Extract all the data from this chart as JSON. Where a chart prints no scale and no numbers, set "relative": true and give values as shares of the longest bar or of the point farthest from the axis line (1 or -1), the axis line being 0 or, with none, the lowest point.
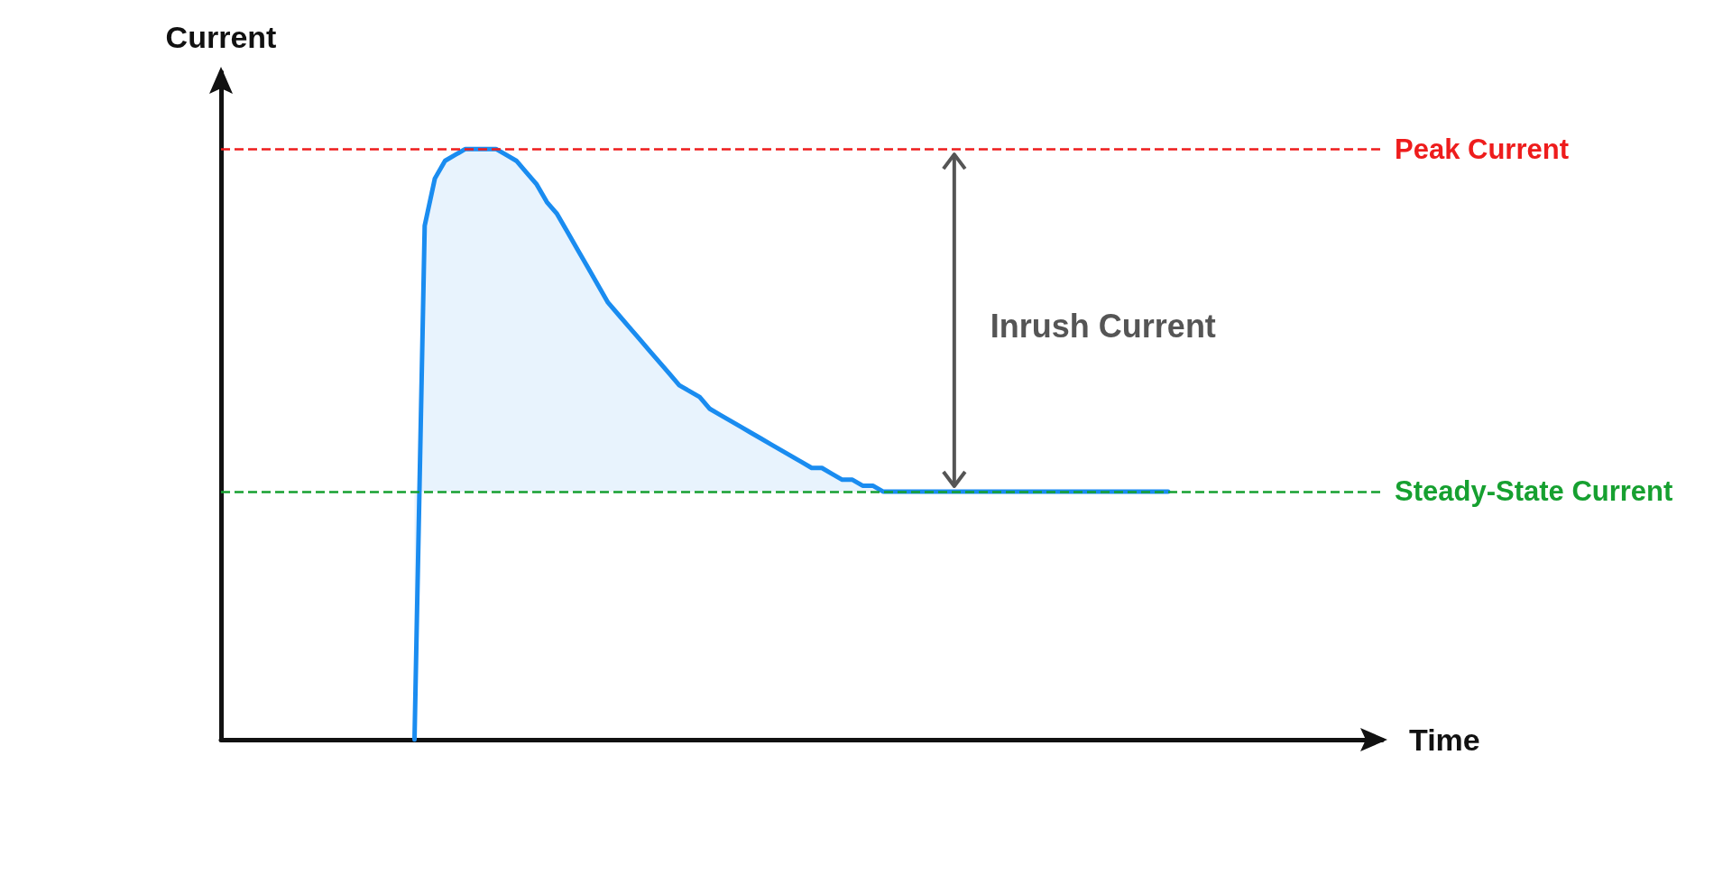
{
  "chart_data": {
    "type": "area",
    "relative": true,
    "xlabel": "Time",
    "ylabel": "Current",
    "grid": false,
    "marker": "none",
    "line_style": "solid",
    "categories": [
      null,
      null,
      null,
      null,
      null,
      null,
      null,
      null,
      null,
      null,
      null,
      null,
      null,
      null,
      null,
      null,
      null,
      null,
      null,
      null,
      null,
      null,
      null,
      null,
      null,
      null,
      null,
      null,
      null,
      null,
      null,
      null,
      null,
      null,
      null,
      null,
      null,
      null,
      null,
      null,
      null,
      null,
      null,
      null,
      null,
      null,
      null,
      null,
      null,
      null,
      null,
      null,
      null,
      null,
      null,
      null,
      null,
      null,
      null,
      null,
      null,
      null,
      null,
      null,
      null,
      null,
      null,
      null,
      null,
      null,
      null,
      null,
      null,
      null,
      null,
      null,
      null,
      null,
      null,
      null,
      null,
      null,
      null,
      null,
      null,
      null,
      null,
      null,
      null,
      null,
      null,
      null,
      null,
      null,
      null,
      null,
      null,
      null,
      null,
      null,
      null,
      null,
      null,
      null,
      null,
      null,
      null,
      null,
      null,
      null,
      null,
      null,
      null,
      null,
      null
    ],
    "series": [
      {
        "color": "#1a8cf0",
        "values": [
          null,
          null,
          null,
          null,
          null,
          null,
          null,
          null,
          null,
          null,
          null,
          null,
          null,
          null,
          null,
          null,
          null,
          null,
          null,
          0,
          0.87,
          0.95,
          0.98,
          0.99,
          1,
          1,
          1,
          1,
          0.99,
          0.98,
          0.96,
          0.94,
          0.91,
          0.89,
          0.86,
          0.83,
          0.8,
          0.77,
          0.74,
          0.72,
          0.7,
          0.68,
          0.66,
          0.64,
          0.62,
          0.6,
          0.59,
          0.58,
          0.56,
          0.55,
          0.54,
          0.53,
          0.52,
          0.51,
          0.5,
          0.49,
          0.48,
          0.47,
          0.46,
          0.46,
          0.45,
          0.44,
          0.44,
          0.43,
          0.43,
          0.42,
          0.42,
          0.42,
          0.42,
          0.42,
          0.42,
          0.42,
          0.42,
          0.42,
          0.42,
          0.42,
          0.42,
          0.42,
          0.42,
          0.42,
          0.42,
          0.42,
          0.42,
          0.42,
          0.42,
          0.42,
          0.42,
          0.42,
          0.42,
          0.42,
          0.42,
          0.42,
          0.42,
          0.42,
          null,
          null,
          null,
          null,
          null,
          null,
          null,
          null,
          null,
          null,
          null,
          null,
          null,
          null,
          null,
          null,
          null,
          null,
          null,
          null,
          null
        ]
      }
    ],
    "ref_lines": [
      {
        "axis": "y",
        "value": 1,
        "label": "Peak Current",
        "color": "#ee1c1c",
        "line_style": "dashed"
      },
      {
        "axis": "y",
        "value": 0.42,
        "label": "Steady-State Current",
        "color": "#16a030",
        "line_style": "dashed"
      }
    ],
    "annotations": [
      "Inrush Current"
    ]
  }
}
